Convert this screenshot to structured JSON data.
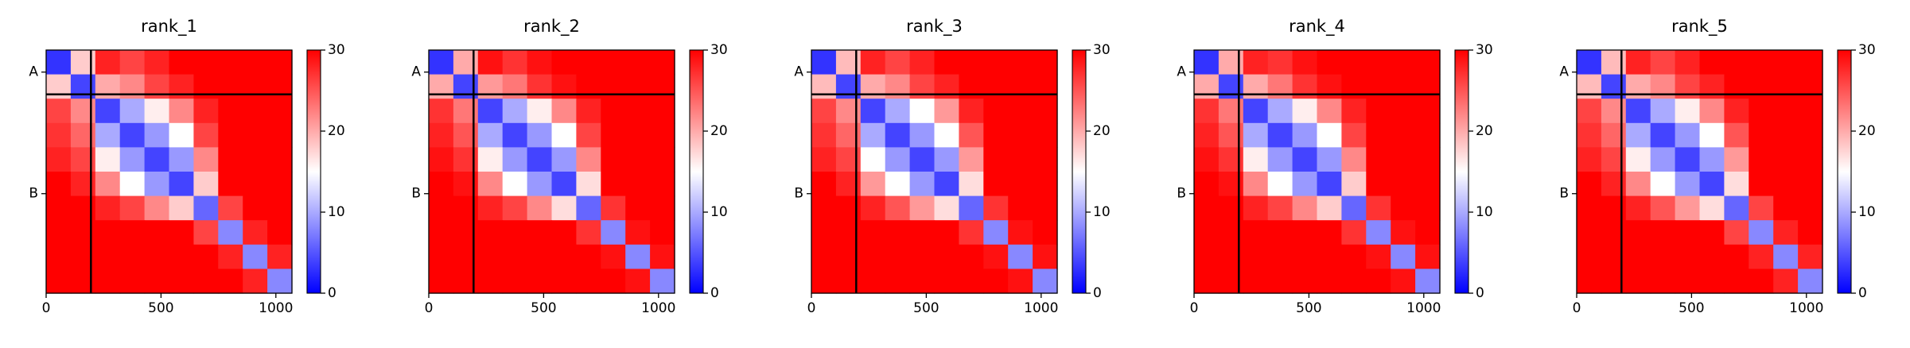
{
  "chart_data": [
    {
      "type": "heatmap",
      "title": "rank_1",
      "xlim": [
        0,
        1070
      ],
      "ylim": [
        1070,
        0
      ],
      "xticks": [
        0,
        500,
        1000
      ],
      "yticks": [
        {
          "value": 97,
          "label": "A"
        },
        {
          "value": 632,
          "label": "B"
        }
      ],
      "chain_breaks": [
        195
      ],
      "colormap": [
        "#0000ff",
        "#ffffff",
        "#ff0000"
      ],
      "clim": [
        0,
        30
      ],
      "cticks": [
        0,
        10,
        20,
        30
      ],
      "values": [
        [
          3,
          18,
          28,
          26,
          28,
          30,
          30,
          30,
          30,
          30
        ],
        [
          18,
          4,
          20,
          22,
          26,
          28,
          30,
          30,
          30,
          30
        ],
        [
          26,
          22,
          4,
          10,
          16,
          22,
          28,
          30,
          30,
          30
        ],
        [
          27,
          24,
          10,
          4,
          9,
          15,
          26,
          30,
          30,
          30
        ],
        [
          28,
          26,
          16,
          9,
          4,
          9,
          22,
          30,
          30,
          30
        ],
        [
          30,
          28,
          22,
          15,
          9,
          4,
          18,
          30,
          30,
          30
        ],
        [
          30,
          30,
          28,
          26,
          22,
          18,
          6,
          26,
          30,
          30
        ],
        [
          30,
          30,
          30,
          30,
          30,
          30,
          26,
          8,
          28,
          30
        ],
        [
          30,
          30,
          30,
          30,
          30,
          30,
          30,
          28,
          8,
          28
        ],
        [
          30,
          30,
          30,
          30,
          30,
          30,
          30,
          30,
          28,
          8
        ]
      ]
    },
    {
      "type": "heatmap",
      "title": "rank_2",
      "xlim": [
        0,
        1070
      ],
      "ylim": [
        1070,
        0
      ],
      "xticks": [
        0,
        500,
        1000
      ],
      "yticks": [
        {
          "value": 97,
          "label": "A"
        },
        {
          "value": 632,
          "label": "B"
        }
      ],
      "chain_breaks": [
        195
      ],
      "colormap": [
        "#0000ff",
        "#ffffff",
        "#ff0000"
      ],
      "clim": [
        0,
        30
      ],
      "cticks": [
        0,
        10,
        20,
        30
      ],
      "values": [
        [
          3,
          20,
          29,
          27,
          29,
          30,
          30,
          30,
          30,
          30
        ],
        [
          20,
          4,
          21,
          23,
          27,
          29,
          30,
          30,
          30,
          30
        ],
        [
          27,
          23,
          4,
          10,
          16,
          22,
          28,
          30,
          30,
          30
        ],
        [
          28,
          25,
          10,
          4,
          9,
          15,
          26,
          30,
          30,
          30
        ],
        [
          29,
          27,
          16,
          9,
          4,
          9,
          22,
          30,
          30,
          30
        ],
        [
          30,
          29,
          22,
          15,
          9,
          4,
          17,
          30,
          30,
          30
        ],
        [
          30,
          30,
          28,
          26,
          22,
          17,
          6,
          27,
          30,
          30
        ],
        [
          30,
          30,
          30,
          30,
          30,
          30,
          27,
          8,
          29,
          30
        ],
        [
          30,
          30,
          30,
          30,
          30,
          30,
          30,
          29,
          8,
          29
        ],
        [
          30,
          30,
          30,
          30,
          30,
          30,
          30,
          30,
          29,
          8
        ]
      ]
    },
    {
      "type": "heatmap",
      "title": "rank_3",
      "xlim": [
        0,
        1070
      ],
      "ylim": [
        1070,
        0
      ],
      "xticks": [
        0,
        500,
        1000
      ],
      "yticks": [
        {
          "value": 97,
          "label": "A"
        },
        {
          "value": 632,
          "label": "B"
        }
      ],
      "chain_breaks": [
        195
      ],
      "colormap": [
        "#0000ff",
        "#ffffff",
        "#ff0000"
      ],
      "clim": [
        0,
        30
      ],
      "cticks": [
        0,
        10,
        20,
        30
      ],
      "values": [
        [
          3,
          19,
          28,
          26,
          28,
          30,
          30,
          30,
          30,
          30
        ],
        [
          19,
          4,
          20,
          22,
          26,
          28,
          30,
          30,
          30,
          30
        ],
        [
          26,
          22,
          4,
          10,
          15,
          21,
          28,
          30,
          30,
          30
        ],
        [
          27,
          24,
          10,
          4,
          9,
          15,
          25,
          30,
          30,
          30
        ],
        [
          28,
          26,
          15,
          9,
          4,
          9,
          21,
          30,
          30,
          30
        ],
        [
          30,
          28,
          21,
          15,
          9,
          4,
          17,
          30,
          30,
          30
        ],
        [
          30,
          30,
          28,
          25,
          21,
          17,
          6,
          27,
          30,
          30
        ],
        [
          30,
          30,
          30,
          30,
          30,
          30,
          27,
          8,
          29,
          30
        ],
        [
          30,
          30,
          30,
          30,
          30,
          30,
          30,
          29,
          8,
          29
        ],
        [
          30,
          30,
          30,
          30,
          30,
          30,
          30,
          30,
          29,
          8
        ]
      ]
    },
    {
      "type": "heatmap",
      "title": "rank_4",
      "xlim": [
        0,
        1070
      ],
      "ylim": [
        1070,
        0
      ],
      "xticks": [
        0,
        500,
        1000
      ],
      "yticks": [
        {
          "value": 97,
          "label": "A"
        },
        {
          "value": 632,
          "label": "B"
        }
      ],
      "chain_breaks": [
        195
      ],
      "colormap": [
        "#0000ff",
        "#ffffff",
        "#ff0000"
      ],
      "clim": [
        0,
        30
      ],
      "cticks": [
        0,
        10,
        20,
        30
      ],
      "values": [
        [
          3,
          20,
          28,
          27,
          29,
          30,
          30,
          30,
          30,
          30
        ],
        [
          20,
          4,
          20,
          23,
          27,
          29,
          30,
          30,
          30,
          30
        ],
        [
          27,
          23,
          4,
          10,
          16,
          22,
          28,
          30,
          30,
          30
        ],
        [
          28,
          25,
          10,
          4,
          9,
          15,
          26,
          30,
          30,
          30
        ],
        [
          29,
          27,
          16,
          9,
          4,
          9,
          22,
          30,
          30,
          30
        ],
        [
          30,
          29,
          22,
          15,
          9,
          4,
          18,
          30,
          30,
          30
        ],
        [
          30,
          30,
          28,
          26,
          22,
          18,
          6,
          27,
          30,
          30
        ],
        [
          30,
          30,
          30,
          30,
          30,
          30,
          27,
          8,
          29,
          30
        ],
        [
          30,
          30,
          30,
          30,
          30,
          30,
          30,
          29,
          8,
          29
        ],
        [
          30,
          30,
          30,
          30,
          30,
          30,
          30,
          30,
          29,
          8
        ]
      ]
    },
    {
      "type": "heatmap",
      "title": "rank_5",
      "xlim": [
        0,
        1070
      ],
      "ylim": [
        1070,
        0
      ],
      "xticks": [
        0,
        500,
        1000
      ],
      "yticks": [
        {
          "value": 97,
          "label": "A"
        },
        {
          "value": 632,
          "label": "B"
        }
      ],
      "chain_breaks": [
        195
      ],
      "colormap": [
        "#0000ff",
        "#ffffff",
        "#ff0000"
      ],
      "clim": [
        0,
        30
      ],
      "cticks": [
        0,
        10,
        20,
        30
      ],
      "values": [
        [
          3,
          19,
          28,
          26,
          28,
          30,
          30,
          30,
          30,
          30
        ],
        [
          19,
          4,
          20,
          22,
          26,
          28,
          30,
          30,
          30,
          30
        ],
        [
          26,
          22,
          4,
          10,
          16,
          22,
          28,
          30,
          30,
          30
        ],
        [
          27,
          24,
          10,
          4,
          9,
          15,
          25,
          30,
          30,
          30
        ],
        [
          28,
          26,
          16,
          9,
          4,
          9,
          21,
          30,
          30,
          30
        ],
        [
          30,
          28,
          22,
          15,
          9,
          4,
          17,
          30,
          30,
          30
        ],
        [
          30,
          30,
          28,
          25,
          21,
          17,
          6,
          26,
          30,
          30
        ],
        [
          30,
          30,
          30,
          30,
          30,
          30,
          26,
          8,
          28,
          30
        ],
        [
          30,
          30,
          30,
          30,
          30,
          30,
          30,
          28,
          8,
          28
        ],
        [
          30,
          30,
          30,
          30,
          30,
          30,
          30,
          30,
          28,
          8
        ]
      ]
    }
  ]
}
